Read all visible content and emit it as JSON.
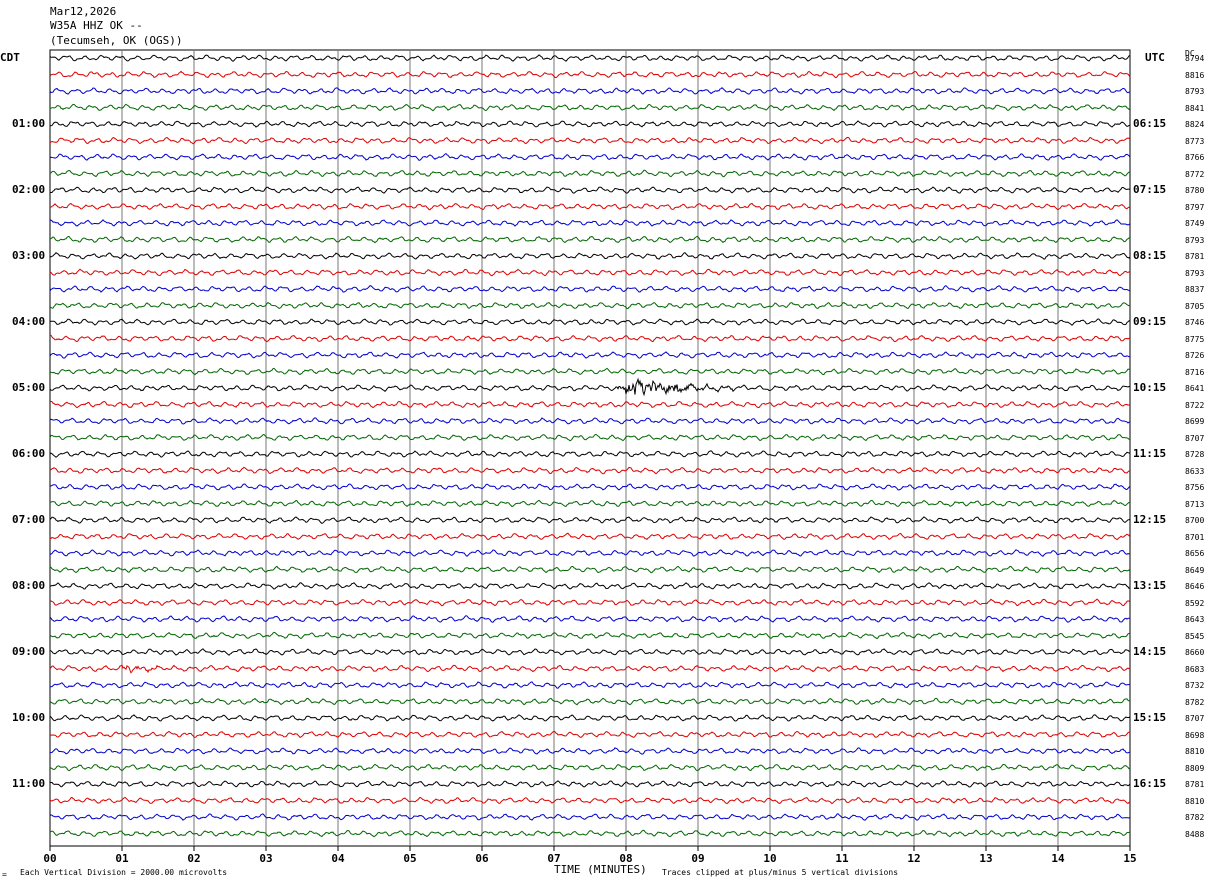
{
  "header": {
    "date": "Mar12,2026",
    "station": "W35A HHZ OK --",
    "location": "(Tecumseh, OK (OGS))"
  },
  "left_tz": "CDT",
  "right_tz": "UTC",
  "dc_header": "DC",
  "footer": {
    "scale_note": "Each Vertical Division = 2000.00 microvolts",
    "corner_mark": "=",
    "xlabel": "TIME (MINUTES)",
    "clip_note": "Traces clipped at plus/minus 5 vertical divisions"
  },
  "chart_data": {
    "type": "line",
    "xlabel": "TIME (MINUTES)",
    "xlim": [
      0,
      15
    ],
    "x_ticks": [
      "00",
      "01",
      "02",
      "03",
      "04",
      "05",
      "06",
      "07",
      "08",
      "09",
      "10",
      "11",
      "12",
      "13",
      "14",
      "15"
    ],
    "trace_colors": [
      "#000000",
      "#dd0000",
      "#0000cc",
      "#006600"
    ],
    "left_time_labels": [
      {
        "row": 4,
        "label": "01:00"
      },
      {
        "row": 8,
        "label": "02:00"
      },
      {
        "row": 12,
        "label": "03:00"
      },
      {
        "row": 16,
        "label": "04:00"
      },
      {
        "row": 20,
        "label": "05:00"
      },
      {
        "row": 24,
        "label": "06:00"
      },
      {
        "row": 28,
        "label": "07:00"
      },
      {
        "row": 32,
        "label": "08:00"
      },
      {
        "row": 36,
        "label": "09:00"
      },
      {
        "row": 40,
        "label": "10:00"
      },
      {
        "row": 44,
        "label": "11:00"
      }
    ],
    "right_time_labels": [
      {
        "row": 4,
        "label": "06:15"
      },
      {
        "row": 8,
        "label": "07:15"
      },
      {
        "row": 12,
        "label": "08:15"
      },
      {
        "row": 16,
        "label": "09:15"
      },
      {
        "row": 20,
        "label": "10:15"
      },
      {
        "row": 24,
        "label": "11:15"
      },
      {
        "row": 28,
        "label": "12:15"
      },
      {
        "row": 32,
        "label": "13:15"
      },
      {
        "row": 36,
        "label": "14:15"
      },
      {
        "row": 40,
        "label": "15:15"
      },
      {
        "row": 44,
        "label": "16:15"
      }
    ],
    "dc_offsets": [
      "8794",
      "8816",
      "8793",
      "8841",
      "8824",
      "8773",
      "8766",
      "8772",
      "8780",
      "8797",
      "8749",
      "8793",
      "8781",
      "8793",
      "8837",
      "8705",
      "8746",
      "8775",
      "8726",
      "8716",
      "8641",
      "8722",
      "8699",
      "8707",
      "8728",
      "8633",
      "8756",
      "8713",
      "8700",
      "8701",
      "8656",
      "8649",
      "8646",
      "8592",
      "8643",
      "8545",
      "8660",
      "8683",
      "8732",
      "8782",
      "8707",
      "8698",
      "8810",
      "8809",
      "8781",
      "8810",
      "8782",
      "8488"
    ],
    "events": [
      {
        "row": 20,
        "start_min": 7.8,
        "end_min": 9.6,
        "amplitude": "large"
      },
      {
        "row": 37,
        "start_min": 0.9,
        "end_min": 1.9,
        "amplitude": "small"
      }
    ]
  }
}
